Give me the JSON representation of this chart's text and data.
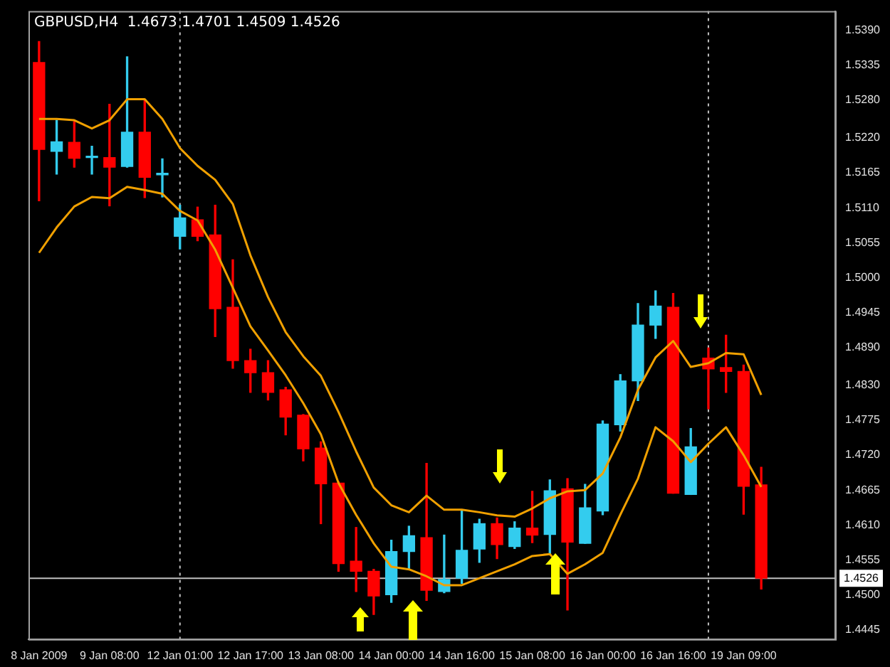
{
  "chart_data": {
    "type": "candlestick",
    "title": "GBPUSD,H4  1.4673 1.4701 1.4509 1.4526",
    "categories": [
      "8 Jan 2009",
      null,
      null,
      null,
      "9 Jan 08:00",
      null,
      null,
      null,
      "12 Jan 01:00",
      null,
      null,
      null,
      "12 Jan 17:00",
      null,
      null,
      null,
      "13 Jan 08:00",
      null,
      null,
      null,
      "14 Jan 00:00",
      null,
      null,
      null,
      "14 Jan 16:00",
      null,
      null,
      null,
      "15 Jan 08:00",
      null,
      null,
      null,
      "16 Jan 00:00",
      null,
      null,
      null,
      "16 Jan 16:00",
      null,
      null,
      null,
      "19 Jan 09:00",
      null
    ],
    "ohlc": [
      [
        1.5339,
        1.5372,
        1.5121,
        1.5202
      ],
      [
        1.5199,
        1.5248,
        1.5163,
        1.5214
      ],
      [
        1.5213,
        1.5246,
        1.5174,
        1.5188
      ],
      [
        1.5189,
        1.5207,
        1.5163,
        1.519
      ],
      [
        1.5189,
        1.5273,
        1.5113,
        1.5174
      ],
      [
        1.5175,
        1.5348,
        1.5174,
        1.5229
      ],
      [
        1.5229,
        1.5281,
        1.5126,
        1.5158
      ],
      [
        1.5162,
        1.5187,
        1.5127,
        1.5163
      ],
      [
        1.5065,
        1.5114,
        1.5045,
        1.5094
      ],
      [
        1.5091,
        1.5111,
        1.5058,
        1.5065
      ],
      [
        1.5067,
        1.5114,
        1.4907,
        1.4951
      ],
      [
        1.4953,
        1.5028,
        1.4857,
        1.4869
      ],
      [
        1.4869,
        1.4887,
        1.4819,
        1.485
      ],
      [
        1.485,
        1.4869,
        1.4807,
        1.4819
      ],
      [
        1.4823,
        1.4827,
        1.4752,
        1.478
      ],
      [
        1.4783,
        1.4784,
        1.4711,
        1.473
      ],
      [
        1.4731,
        1.4741,
        1.4612,
        1.4675
      ],
      [
        1.4676,
        1.4678,
        1.4537,
        1.4549
      ],
      [
        1.4553,
        1.4606,
        1.4505,
        1.4537
      ],
      [
        1.4537,
        1.454,
        1.4469,
        1.4498
      ],
      [
        1.45,
        1.4586,
        1.4488,
        1.4568
      ],
      [
        1.4568,
        1.4608,
        1.454,
        1.4593
      ],
      [
        1.459,
        1.4707,
        1.4491,
        1.4507
      ],
      [
        1.4505,
        1.4594,
        1.4503,
        1.4524
      ],
      [
        1.4526,
        1.4632,
        1.4518,
        1.457
      ],
      [
        1.4572,
        1.4619,
        1.4551,
        1.4612
      ],
      [
        1.4612,
        1.4621,
        1.4557,
        1.4579
      ],
      [
        1.4576,
        1.4615,
        1.4573,
        1.4605
      ],
      [
        1.4605,
        1.4663,
        1.4582,
        1.4594
      ],
      [
        1.4595,
        1.4681,
        1.4564,
        1.4664
      ],
      [
        1.4667,
        1.4683,
        1.4476,
        1.4583
      ],
      [
        1.4581,
        1.4674,
        1.4581,
        1.4637
      ],
      [
        1.4632,
        1.4774,
        1.4626,
        1.4769
      ],
      [
        1.4768,
        1.4847,
        1.4758,
        1.4837
      ],
      [
        1.4837,
        1.4959,
        1.4806,
        1.4925
      ],
      [
        1.4925,
        1.4979,
        1.4904,
        1.4955
      ],
      [
        1.4953,
        1.4975,
        1.466,
        1.466
      ],
      [
        1.4658,
        1.4762,
        1.4658,
        1.4733
      ],
      [
        1.4873,
        1.4889,
        1.4793,
        1.4856
      ],
      [
        1.4858,
        1.4909,
        1.4819,
        1.4852
      ],
      [
        1.4852,
        1.4862,
        1.4627,
        1.4671
      ],
      [
        1.4673,
        1.4701,
        1.4509,
        1.4526
      ]
    ],
    "colors": [
      "#ff0000",
      "#33ccee",
      "#ff0000",
      "#33ccee",
      "#ff0000",
      "#33ccee",
      "#ff0000",
      "#33ccee",
      "#33ccee",
      "#ff0000",
      "#ff0000",
      "#ff0000",
      "#ff0000",
      "#ff0000",
      "#ff0000",
      "#ff0000",
      "#ff0000",
      "#ff0000",
      "#ff0000",
      "#ff0000",
      "#33ccee",
      "#33ccee",
      "#ff0000",
      "#33ccee",
      "#33ccee",
      "#33ccee",
      "#ff0000",
      "#33ccee",
      "#ff0000",
      "#33ccee",
      "#ff0000",
      "#33ccee",
      "#33ccee",
      "#33ccee",
      "#33ccee",
      "#33ccee",
      "#ff0000",
      "#33ccee",
      "#ff0000",
      "#ff0000",
      "#ff0000",
      "#ff0000"
    ],
    "series": [
      {
        "type": "line",
        "color": "#f0a000",
        "values": [
          1.525,
          1.525,
          1.5248,
          1.5235,
          1.5248,
          1.5281,
          1.5281,
          1.525,
          1.5204,
          1.5176,
          1.5154,
          1.5116,
          1.5035,
          1.4969,
          1.4914,
          1.4876,
          1.4845,
          1.4788,
          1.4726,
          1.4669,
          1.4641,
          1.463,
          1.4656,
          1.4634,
          1.4634,
          1.463,
          1.4625,
          1.4623,
          1.4636,
          1.4652,
          1.4663,
          1.4665,
          1.4691,
          1.4748,
          1.4823,
          1.4874,
          1.49,
          1.4859,
          1.4865,
          1.4881,
          1.4879,
          1.4815
        ]
      },
      {
        "type": "line",
        "color": "#f0a000",
        "values": [
          1.5039,
          1.5079,
          1.5112,
          1.5127,
          1.5125,
          1.5143,
          1.5138,
          1.5132,
          1.5105,
          1.509,
          1.5044,
          1.4984,
          1.4923,
          1.4885,
          1.4846,
          1.4802,
          1.4753,
          1.4676,
          1.4626,
          1.4581,
          1.4544,
          1.454,
          1.4529,
          1.4515,
          1.4515,
          1.4526,
          1.4537,
          1.4548,
          1.4561,
          1.4564,
          1.4533,
          1.4548,
          1.4566,
          1.4626,
          1.4683,
          1.4764,
          1.4742,
          1.4709,
          1.4738,
          1.4764,
          1.472,
          1.467
        ]
      }
    ],
    "ylim": [
      1.443,
      1.542
    ],
    "yticks": [
      {
        "value": 1.539,
        "label": "1.5390"
      },
      1.5335,
      {
        "value": 1.528,
        "label": "1.5280"
      },
      {
        "value": 1.522,
        "label": "1.5220"
      },
      1.5165,
      {
        "value": 1.511,
        "label": "1.5110"
      },
      1.5055,
      {
        "value": 1.5,
        "label": "1.5000"
      },
      1.4945,
      {
        "value": 1.489,
        "label": "1.4890"
      },
      {
        "value": 1.483,
        "label": "1.4830"
      },
      1.4775,
      {
        "value": 1.472,
        "label": "1.4720"
      },
      1.4665,
      {
        "value": 1.461,
        "label": "1.4610"
      },
      1.4555,
      {
        "value": 1.45,
        "label": "1.4500"
      },
      1.4445
    ],
    "ref_lines": [
      {
        "axis": "y",
        "value": 1.4526,
        "label": "1.4526",
        "color": "#c0c0c0",
        "line_style": "solid"
      }
    ],
    "grid": false,
    "legend": false
  }
}
